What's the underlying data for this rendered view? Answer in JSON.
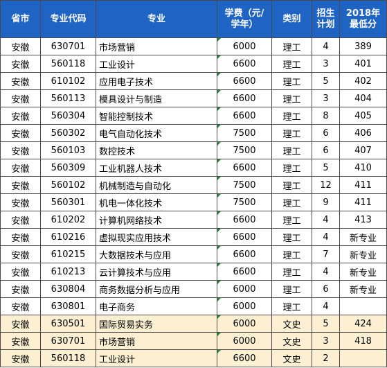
{
  "headers": {
    "province": "省市",
    "code": "专业代码",
    "major": "专业",
    "fee": "学费（元/学年）",
    "category": "类别",
    "enroll": "招生计划",
    "min_score": "2018年最低分"
  },
  "rows": [
    {
      "province": "安徽",
      "code": "630701",
      "major": "市场营销",
      "fee": "6000",
      "category": "理工",
      "enroll": "4",
      "min_score": "389"
    },
    {
      "province": "安徽",
      "code": "560118",
      "major": "工业设计",
      "fee": "6600",
      "category": "理工",
      "enroll": "3",
      "min_score": "401"
    },
    {
      "province": "安徽",
      "code": "610102",
      "major": "应用电子技术",
      "fee": "6600",
      "category": "理工",
      "enroll": "5",
      "min_score": "402"
    },
    {
      "province": "安徽",
      "code": "560113",
      "major": "模具设计与制造",
      "fee": "6600",
      "category": "理工",
      "enroll": "3",
      "min_score": "404"
    },
    {
      "province": "安徽",
      "code": "560304",
      "major": "智能控制技术",
      "fee": "6600",
      "category": "理工",
      "enroll": "8",
      "min_score": "405"
    },
    {
      "province": "安徽",
      "code": "560302",
      "major": "电气自动化技术",
      "fee": "7500",
      "category": "理工",
      "enroll": "6",
      "min_score": "406"
    },
    {
      "province": "安徽",
      "code": "560103",
      "major": "数控技术",
      "fee": "7500",
      "category": "理工",
      "enroll": "6",
      "min_score": "407"
    },
    {
      "province": "安徽",
      "code": "560309",
      "major": "工业机器人技术",
      "fee": "6600",
      "category": "理工",
      "enroll": "5",
      "min_score": "410"
    },
    {
      "province": "安徽",
      "code": "560102",
      "major": "机械制造与自动化",
      "fee": "7500",
      "category": "理工",
      "enroll": "12",
      "min_score": "411"
    },
    {
      "province": "安徽",
      "code": "560301",
      "major": "机电一体化技术",
      "fee": "7500",
      "category": "理工",
      "enroll": "9",
      "min_score": "411"
    },
    {
      "province": "安徽",
      "code": "610202",
      "major": "计算机网络技术",
      "fee": "6600",
      "category": "理工",
      "enroll": "4",
      "min_score": "413"
    },
    {
      "province": "安徽",
      "code": "610216",
      "major": "虚拟现实应用技术",
      "fee": "6600",
      "category": "理工",
      "enroll": "4",
      "min_score": "新专业"
    },
    {
      "province": "安徽",
      "code": "610215",
      "major": "大数据技术与应用",
      "fee": "6600",
      "category": "理工",
      "enroll": "7",
      "min_score": "新专业"
    },
    {
      "province": "安徽",
      "code": "610213",
      "major": "云计算技术与应用",
      "fee": "6600",
      "category": "理工",
      "enroll": "4",
      "min_score": "新专业"
    },
    {
      "province": "安徽",
      "code": "630804",
      "major": "商务数据分析与应用",
      "fee": "6000",
      "category": "理工",
      "enroll": "6",
      "min_score": "新专业"
    },
    {
      "province": "安徽",
      "code": "630801",
      "major": "电子商务",
      "fee": "6000",
      "category": "理工",
      "enroll": "4",
      "min_score": ""
    },
    {
      "province": "安徽",
      "code": "630501",
      "major": "国际贸易实务",
      "fee": "6000",
      "category": "文史",
      "enroll": "5",
      "min_score": "424"
    },
    {
      "province": "安徽",
      "code": "630701",
      "major": "市场营销",
      "fee": "6000",
      "category": "文史",
      "enroll": "3",
      "min_score": "418"
    },
    {
      "province": "安徽",
      "code": "560118",
      "major": "工业设计",
      "fee": "6600",
      "category": "文史",
      "enroll": "2",
      "min_score": ""
    }
  ],
  "colors": {
    "header_bg": "#1f63c3",
    "header_text": "#ffffff",
    "wenshi_row_bg": "#fdf0d2",
    "border": "#4a4a4a",
    "cell_marker": "#2a8a3a"
  }
}
